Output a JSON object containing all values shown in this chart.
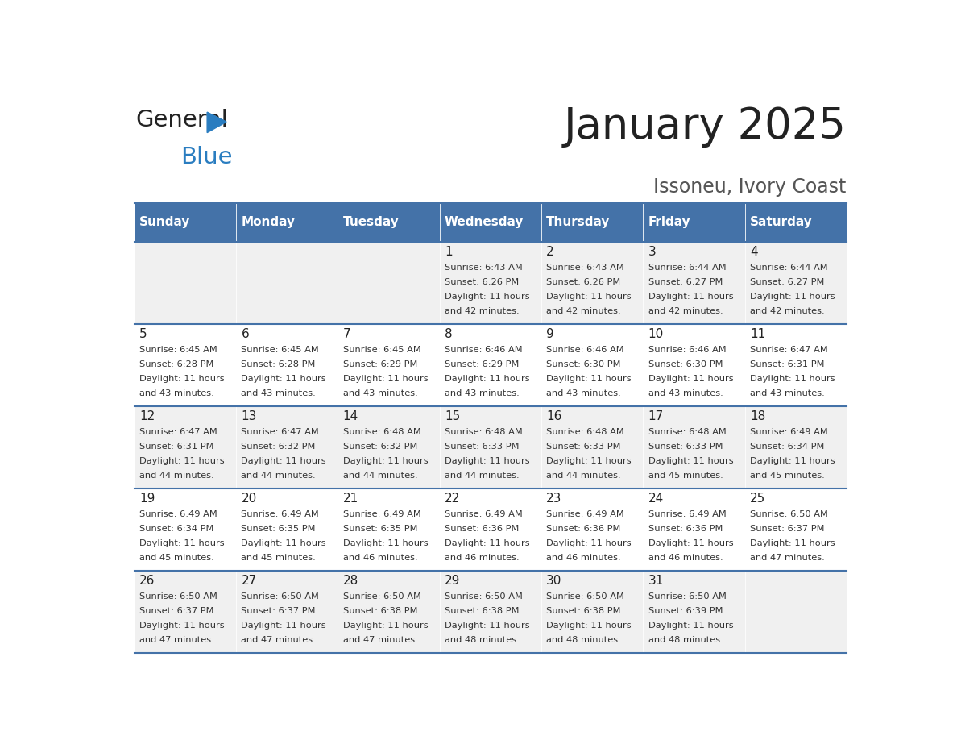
{
  "title": "January 2025",
  "subtitle": "Issoneu, Ivory Coast",
  "header_color": "#4472a8",
  "header_text_color": "#ffffff",
  "cell_bg_even": "#f0f0f0",
  "cell_bg_odd": "#ffffff",
  "day_names": [
    "Sunday",
    "Monday",
    "Tuesday",
    "Wednesday",
    "Thursday",
    "Friday",
    "Saturday"
  ],
  "title_color": "#222222",
  "subtitle_color": "#555555",
  "day_number_color": "#222222",
  "cell_text_color": "#333333",
  "grid_color": "#4472a8",
  "logo_general_color": "#222222",
  "logo_blue_color": "#2a7dc0",
  "days": [
    {
      "day": 1,
      "col": 3,
      "row": 0,
      "sunrise": "6:43 AM",
      "sunset": "6:26 PM",
      "daylight_hours": 11,
      "daylight_minutes": 42
    },
    {
      "day": 2,
      "col": 4,
      "row": 0,
      "sunrise": "6:43 AM",
      "sunset": "6:26 PM",
      "daylight_hours": 11,
      "daylight_minutes": 42
    },
    {
      "day": 3,
      "col": 5,
      "row": 0,
      "sunrise": "6:44 AM",
      "sunset": "6:27 PM",
      "daylight_hours": 11,
      "daylight_minutes": 42
    },
    {
      "day": 4,
      "col": 6,
      "row": 0,
      "sunrise": "6:44 AM",
      "sunset": "6:27 PM",
      "daylight_hours": 11,
      "daylight_minutes": 42
    },
    {
      "day": 5,
      "col": 0,
      "row": 1,
      "sunrise": "6:45 AM",
      "sunset": "6:28 PM",
      "daylight_hours": 11,
      "daylight_minutes": 43
    },
    {
      "day": 6,
      "col": 1,
      "row": 1,
      "sunrise": "6:45 AM",
      "sunset": "6:28 PM",
      "daylight_hours": 11,
      "daylight_minutes": 43
    },
    {
      "day": 7,
      "col": 2,
      "row": 1,
      "sunrise": "6:45 AM",
      "sunset": "6:29 PM",
      "daylight_hours": 11,
      "daylight_minutes": 43
    },
    {
      "day": 8,
      "col": 3,
      "row": 1,
      "sunrise": "6:46 AM",
      "sunset": "6:29 PM",
      "daylight_hours": 11,
      "daylight_minutes": 43
    },
    {
      "day": 9,
      "col": 4,
      "row": 1,
      "sunrise": "6:46 AM",
      "sunset": "6:30 PM",
      "daylight_hours": 11,
      "daylight_minutes": 43
    },
    {
      "day": 10,
      "col": 5,
      "row": 1,
      "sunrise": "6:46 AM",
      "sunset": "6:30 PM",
      "daylight_hours": 11,
      "daylight_minutes": 43
    },
    {
      "day": 11,
      "col": 6,
      "row": 1,
      "sunrise": "6:47 AM",
      "sunset": "6:31 PM",
      "daylight_hours": 11,
      "daylight_minutes": 43
    },
    {
      "day": 12,
      "col": 0,
      "row": 2,
      "sunrise": "6:47 AM",
      "sunset": "6:31 PM",
      "daylight_hours": 11,
      "daylight_minutes": 44
    },
    {
      "day": 13,
      "col": 1,
      "row": 2,
      "sunrise": "6:47 AM",
      "sunset": "6:32 PM",
      "daylight_hours": 11,
      "daylight_minutes": 44
    },
    {
      "day": 14,
      "col": 2,
      "row": 2,
      "sunrise": "6:48 AM",
      "sunset": "6:32 PM",
      "daylight_hours": 11,
      "daylight_minutes": 44
    },
    {
      "day": 15,
      "col": 3,
      "row": 2,
      "sunrise": "6:48 AM",
      "sunset": "6:33 PM",
      "daylight_hours": 11,
      "daylight_minutes": 44
    },
    {
      "day": 16,
      "col": 4,
      "row": 2,
      "sunrise": "6:48 AM",
      "sunset": "6:33 PM",
      "daylight_hours": 11,
      "daylight_minutes": 44
    },
    {
      "day": 17,
      "col": 5,
      "row": 2,
      "sunrise": "6:48 AM",
      "sunset": "6:33 PM",
      "daylight_hours": 11,
      "daylight_minutes": 45
    },
    {
      "day": 18,
      "col": 6,
      "row": 2,
      "sunrise": "6:49 AM",
      "sunset": "6:34 PM",
      "daylight_hours": 11,
      "daylight_minutes": 45
    },
    {
      "day": 19,
      "col": 0,
      "row": 3,
      "sunrise": "6:49 AM",
      "sunset": "6:34 PM",
      "daylight_hours": 11,
      "daylight_minutes": 45
    },
    {
      "day": 20,
      "col": 1,
      "row": 3,
      "sunrise": "6:49 AM",
      "sunset": "6:35 PM",
      "daylight_hours": 11,
      "daylight_minutes": 45
    },
    {
      "day": 21,
      "col": 2,
      "row": 3,
      "sunrise": "6:49 AM",
      "sunset": "6:35 PM",
      "daylight_hours": 11,
      "daylight_minutes": 46
    },
    {
      "day": 22,
      "col": 3,
      "row": 3,
      "sunrise": "6:49 AM",
      "sunset": "6:36 PM",
      "daylight_hours": 11,
      "daylight_minutes": 46
    },
    {
      "day": 23,
      "col": 4,
      "row": 3,
      "sunrise": "6:49 AM",
      "sunset": "6:36 PM",
      "daylight_hours": 11,
      "daylight_minutes": 46
    },
    {
      "day": 24,
      "col": 5,
      "row": 3,
      "sunrise": "6:49 AM",
      "sunset": "6:36 PM",
      "daylight_hours": 11,
      "daylight_minutes": 46
    },
    {
      "day": 25,
      "col": 6,
      "row": 3,
      "sunrise": "6:50 AM",
      "sunset": "6:37 PM",
      "daylight_hours": 11,
      "daylight_minutes": 47
    },
    {
      "day": 26,
      "col": 0,
      "row": 4,
      "sunrise": "6:50 AM",
      "sunset": "6:37 PM",
      "daylight_hours": 11,
      "daylight_minutes": 47
    },
    {
      "day": 27,
      "col": 1,
      "row": 4,
      "sunrise": "6:50 AM",
      "sunset": "6:37 PM",
      "daylight_hours": 11,
      "daylight_minutes": 47
    },
    {
      "day": 28,
      "col": 2,
      "row": 4,
      "sunrise": "6:50 AM",
      "sunset": "6:38 PM",
      "daylight_hours": 11,
      "daylight_minutes": 47
    },
    {
      "day": 29,
      "col": 3,
      "row": 4,
      "sunrise": "6:50 AM",
      "sunset": "6:38 PM",
      "daylight_hours": 11,
      "daylight_minutes": 48
    },
    {
      "day": 30,
      "col": 4,
      "row": 4,
      "sunrise": "6:50 AM",
      "sunset": "6:38 PM",
      "daylight_hours": 11,
      "daylight_minutes": 48
    },
    {
      "day": 31,
      "col": 5,
      "row": 4,
      "sunrise": "6:50 AM",
      "sunset": "6:39 PM",
      "daylight_hours": 11,
      "daylight_minutes": 48
    }
  ]
}
